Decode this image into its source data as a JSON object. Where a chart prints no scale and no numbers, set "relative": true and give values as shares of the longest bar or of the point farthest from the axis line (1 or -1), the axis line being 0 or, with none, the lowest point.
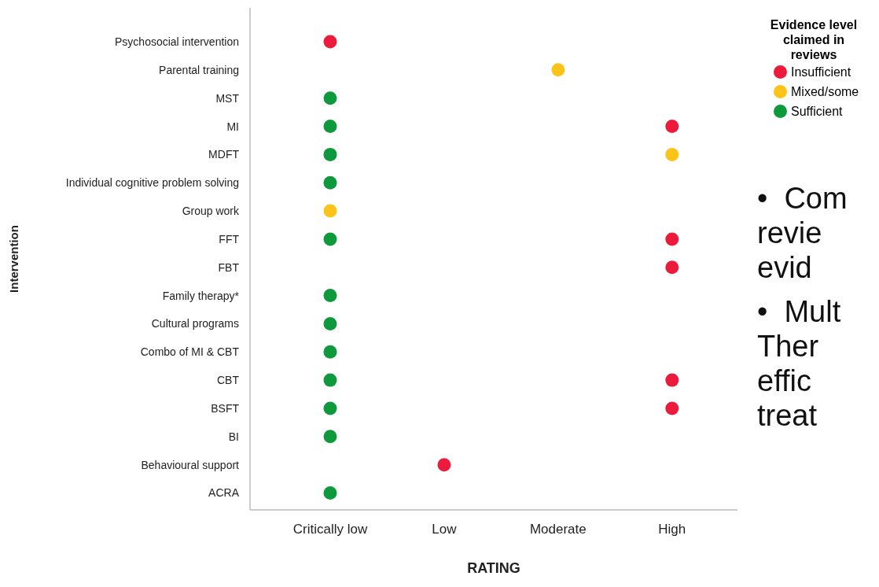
{
  "chart_data": {
    "type": "scatter",
    "orientation": "horizontal",
    "relative": true,
    "xlabel": "RATING",
    "ylabel": "Intervention",
    "legend_title": "Evidence level claimed in reviews",
    "legend": "top right",
    "marker": "circle",
    "categories": [
      "Psychosocial intervention",
      "Parental training",
      "MST",
      "MI",
      "MDFT",
      "Individual cognitive problem solving",
      "Group work",
      "FFT",
      "FBT",
      "Family therapy*",
      "Cultural programs",
      "Combo of MI & CBT",
      "CBT",
      "BSFT",
      "BI",
      "Behavioural support",
      "ACRA"
    ],
    "series": [
      {
        "name": "Insufficient",
        "color": "#ec1b3b",
        "values": [
          0.19,
          null,
          null,
          1,
          null,
          null,
          null,
          1,
          1,
          null,
          null,
          null,
          1,
          1,
          null,
          0.46,
          null
        ]
      },
      {
        "name": "Mixed/some",
        "color": "#fcc419",
        "values": [
          null,
          0.73,
          null,
          null,
          1,
          null,
          0.19,
          null,
          null,
          null,
          null,
          null,
          null,
          null,
          null,
          null,
          null
        ]
      },
      {
        "name": "Sufficient",
        "color": "#0e9a3c",
        "values": [
          null,
          null,
          0.19,
          0.19,
          0.19,
          0.19,
          null,
          0.19,
          null,
          0.19,
          0.19,
          0.19,
          0.19,
          0.19,
          0.19,
          null,
          0.19
        ]
      }
    ],
    "annotations": [
      "Critically low",
      "Low",
      "Moderate",
      "High",
      "•  Com",
      "revie",
      "evid",
      "•  Mult",
      "Ther",
      "effic",
      "treat"
    ]
  }
}
